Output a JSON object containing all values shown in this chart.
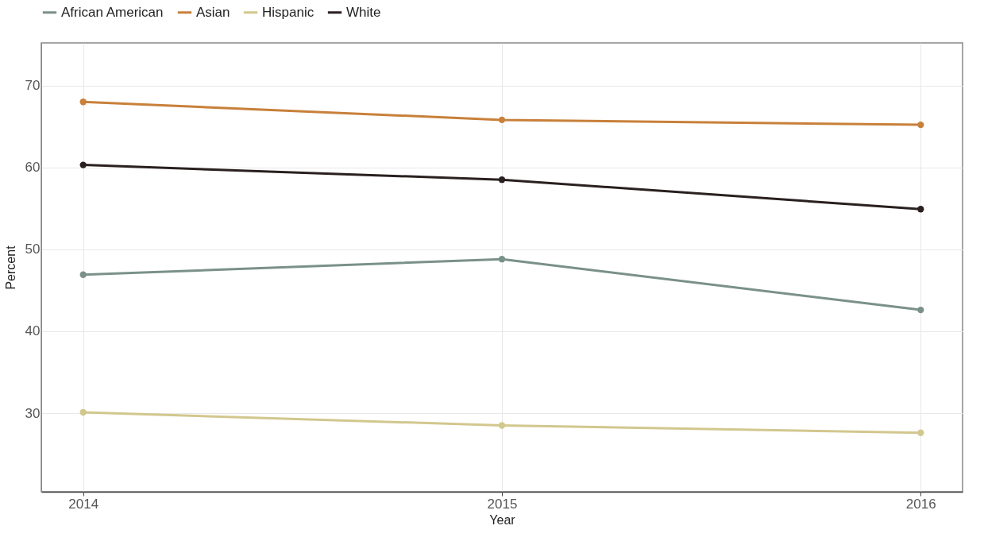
{
  "chart_data": {
    "type": "line",
    "xlabel": "Year",
    "ylabel": "Percent",
    "x": [
      2014,
      2015,
      2016
    ],
    "series": [
      {
        "name": "African American",
        "color": "#7a9189",
        "values": [
          46.9,
          48.8,
          42.6
        ]
      },
      {
        "name": "Asian",
        "color": "#c8803a",
        "values": [
          68.0,
          65.8,
          65.2
        ]
      },
      {
        "name": "Hispanic",
        "color": "#d2c78e",
        "values": [
          30.1,
          28.5,
          27.6
        ]
      },
      {
        "name": "White",
        "color": "#2a2020",
        "values": [
          60.3,
          58.5,
          54.9
        ]
      }
    ],
    "xlim": [
      2013.9,
      2016.1
    ],
    "xticks": [
      2014,
      2015,
      2016
    ],
    "ylim": [
      20.4,
      75.2
    ],
    "yticks": [
      30,
      40,
      50,
      60,
      70
    ],
    "grid": true,
    "legend": "top",
    "marker": "circle",
    "line_style": "solid"
  }
}
